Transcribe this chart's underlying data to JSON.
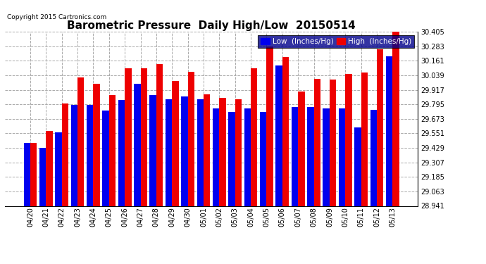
{
  "title": "Barometric Pressure  Daily High/Low  20150514",
  "copyright": "Copyright 2015 Cartronics.com",
  "dates": [
    "04/20",
    "04/21",
    "04/22",
    "04/23",
    "04/24",
    "04/25",
    "04/26",
    "04/27",
    "04/28",
    "04/29",
    "04/30",
    "05/01",
    "05/02",
    "05/03",
    "05/04",
    "05/05",
    "05/06",
    "05/07",
    "05/08",
    "05/09",
    "05/10",
    "05/11",
    "05/12",
    "05/13"
  ],
  "low_values": [
    29.47,
    29.43,
    29.56,
    29.79,
    29.79,
    29.74,
    29.83,
    29.97,
    29.87,
    29.84,
    29.86,
    29.84,
    29.76,
    29.73,
    29.76,
    29.73,
    30.12,
    29.77,
    29.77,
    29.76,
    29.76,
    29.6,
    29.75,
    30.2
  ],
  "high_values": [
    29.47,
    29.57,
    29.8,
    30.02,
    29.97,
    29.87,
    30.1,
    30.1,
    30.13,
    29.99,
    30.07,
    29.88,
    29.85,
    29.84,
    30.1,
    30.28,
    30.19,
    29.9,
    30.01,
    30.0,
    30.05,
    30.06,
    30.26,
    30.41
  ],
  "ymin": 28.941,
  "ymax": 30.405,
  "yticks": [
    28.941,
    29.063,
    29.185,
    29.307,
    29.429,
    29.551,
    29.673,
    29.795,
    29.917,
    30.039,
    30.161,
    30.283,
    30.405
  ],
  "bar_color_low": "#0000ee",
  "bar_color_high": "#ee0000",
  "background_color": "#ffffff",
  "grid_color": "#aaaaaa",
  "title_fontsize": 11,
  "tick_fontsize": 7,
  "copyright_fontsize": 6.5,
  "legend_fontsize": 7.5
}
